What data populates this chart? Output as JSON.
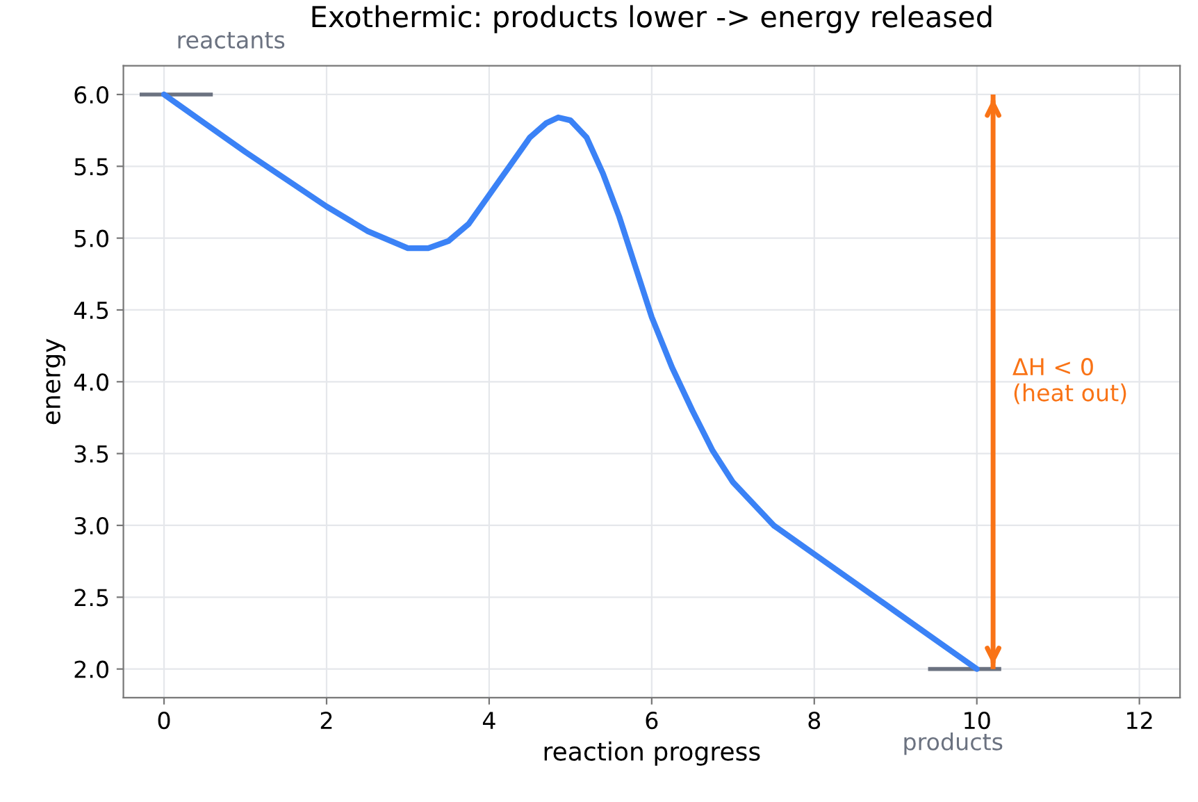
{
  "chart_data": {
    "type": "line",
    "title": "Exothermic: products lower -> energy released",
    "xlabel": "reaction progress",
    "ylabel": "energy",
    "xlim": [
      -0.5,
      12.5
    ],
    "xticks": [
      0,
      2,
      4,
      6,
      8,
      10,
      12
    ],
    "ylim": [
      1.8,
      6.2
    ],
    "yticks": [
      {
        "value": 2,
        "label": "2.0"
      },
      2.5,
      {
        "value": 3,
        "label": "3.0"
      },
      3.5,
      {
        "value": 4,
        "label": "4.0"
      },
      4.5,
      {
        "value": 5,
        "label": "5.0"
      },
      5.5,
      {
        "value": 6,
        "label": "6.0"
      }
    ],
    "grid": true,
    "line_style": "solid",
    "series": [
      {
        "color": "#3b82f6",
        "x": [
          0,
          0.5,
          1,
          1.5,
          2,
          2.5,
          3,
          3.25,
          3.5,
          3.75,
          4,
          4.25,
          4.5,
          4.7,
          4.85,
          5.0,
          5.2,
          5.4,
          5.6,
          5.8,
          6,
          6.25,
          6.5,
          6.75,
          7,
          7.5,
          8,
          8.5,
          9,
          9.5,
          10
        ],
        "values": [
          6.0,
          5.8,
          5.6,
          5.41,
          5.22,
          5.05,
          4.93,
          4.93,
          4.98,
          5.1,
          5.3,
          5.5,
          5.7,
          5.8,
          5.84,
          5.82,
          5.7,
          5.45,
          5.15,
          4.8,
          4.45,
          4.1,
          3.8,
          3.52,
          3.3,
          3.0,
          2.8,
          2.6,
          2.4,
          2.2,
          2.0
        ]
      },
      {
        "color": "#6b7280",
        "x": [
          -0.3,
          0.6
        ],
        "values": [
          6.0,
          6.0
        ]
      },
      {
        "color": "#6b7280",
        "x": [
          9.4,
          10.3
        ],
        "values": [
          2.0,
          2.0
        ]
      },
      {
        "color": "#f97316",
        "x": [
          10.2,
          10.2
        ],
        "values": [
          2.0,
          6.0
        ]
      }
    ],
    "annotations": [
      "reactants",
      "products",
      "ΔH < 0\n(heat out)"
    ]
  }
}
